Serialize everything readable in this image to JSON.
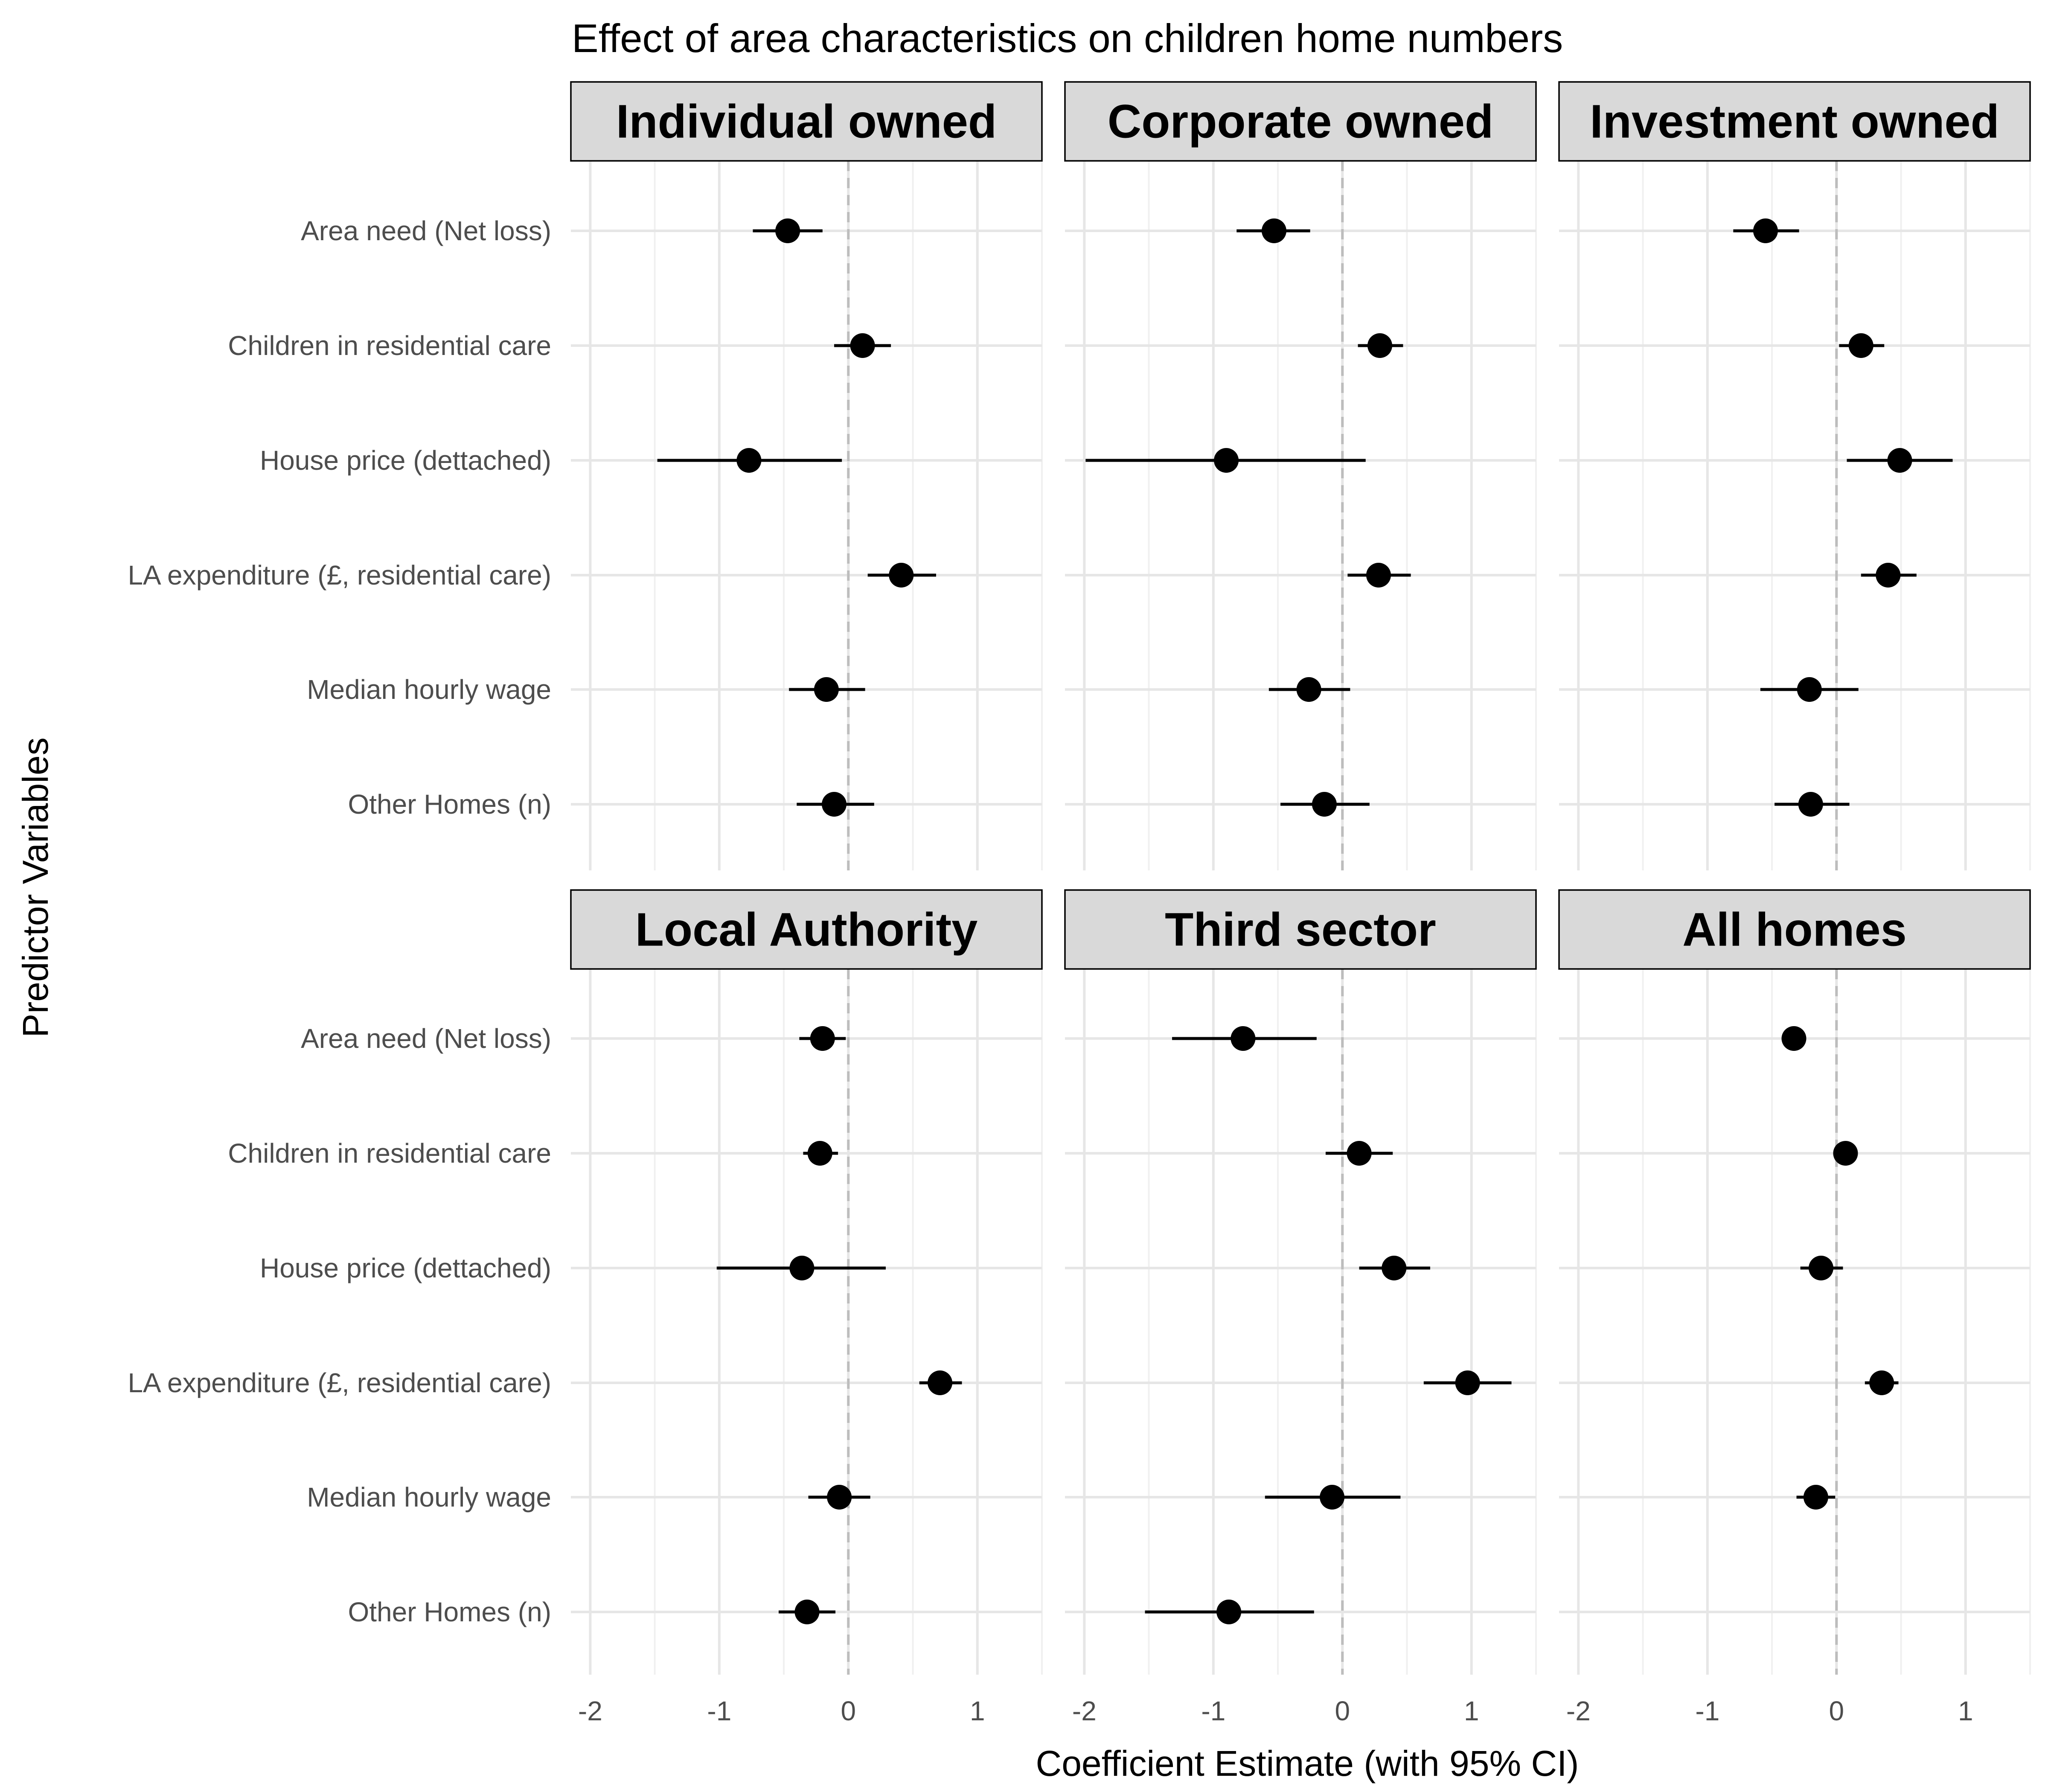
{
  "chart_data": {
    "type": "forest-plot",
    "title": "Effect of area characteristics on children home numbers",
    "xlabel": "Coefficient Estimate (with 95% CI)",
    "ylabel": "Predictor Variables",
    "xlim": [
      -2.15,
      1.5
    ],
    "x_ticks": [
      -2,
      -1,
      0,
      1
    ],
    "reference_line": 0,
    "grid": true,
    "predictors": [
      "Area need (Net loss)",
      "Children in residential care",
      "House price (dettached)",
      "LA expenditure (£, residential care)",
      "Median hourly wage",
      "Other Homes (n)"
    ],
    "facets": [
      {
        "name": "Individual owned",
        "estimates": [
          {
            "estimate": -0.47,
            "lower": -0.74,
            "upper": -0.2
          },
          {
            "estimate": 0.11,
            "lower": -0.11,
            "upper": 0.33
          },
          {
            "estimate": -0.77,
            "lower": -1.48,
            "upper": -0.05
          },
          {
            "estimate": 0.41,
            "lower": 0.15,
            "upper": 0.68
          },
          {
            "estimate": -0.17,
            "lower": -0.46,
            "upper": 0.13
          },
          {
            "estimate": -0.11,
            "lower": -0.4,
            "upper": 0.2
          }
        ]
      },
      {
        "name": "Corporate owned",
        "estimates": [
          {
            "estimate": -0.53,
            "lower": -0.82,
            "upper": -0.25
          },
          {
            "estimate": 0.29,
            "lower": 0.12,
            "upper": 0.47
          },
          {
            "estimate": -0.9,
            "lower": -1.99,
            "upper": 0.18
          },
          {
            "estimate": 0.28,
            "lower": 0.04,
            "upper": 0.53
          },
          {
            "estimate": -0.26,
            "lower": -0.57,
            "upper": 0.06
          },
          {
            "estimate": -0.14,
            "lower": -0.48,
            "upper": 0.21
          }
        ]
      },
      {
        "name": "Investment owned",
        "estimates": [
          {
            "estimate": -0.55,
            "lower": -0.8,
            "upper": -0.29
          },
          {
            "estimate": 0.19,
            "lower": 0.02,
            "upper": 0.37
          },
          {
            "estimate": 0.49,
            "lower": 0.08,
            "upper": 0.9
          },
          {
            "estimate": 0.4,
            "lower": 0.19,
            "upper": 0.62
          },
          {
            "estimate": -0.21,
            "lower": -0.59,
            "upper": 0.17
          },
          {
            "estimate": -0.2,
            "lower": -0.48,
            "upper": 0.1
          }
        ]
      },
      {
        "name": "Local Authority",
        "estimates": [
          {
            "estimate": -0.2,
            "lower": -0.38,
            "upper": -0.02
          },
          {
            "estimate": -0.22,
            "lower": -0.35,
            "upper": -0.08
          },
          {
            "estimate": -0.36,
            "lower": -1.02,
            "upper": 0.29
          },
          {
            "estimate": 0.71,
            "lower": 0.55,
            "upper": 0.88
          },
          {
            "estimate": -0.07,
            "lower": -0.31,
            "upper": 0.17
          },
          {
            "estimate": -0.32,
            "lower": -0.54,
            "upper": -0.1
          }
        ]
      },
      {
        "name": "Third sector",
        "estimates": [
          {
            "estimate": -0.77,
            "lower": -1.32,
            "upper": -0.2
          },
          {
            "estimate": 0.13,
            "lower": -0.13,
            "upper": 0.39
          },
          {
            "estimate": 0.4,
            "lower": 0.13,
            "upper": 0.68
          },
          {
            "estimate": 0.97,
            "lower": 0.63,
            "upper": 1.31
          },
          {
            "estimate": -0.08,
            "lower": -0.6,
            "upper": 0.45
          },
          {
            "estimate": -0.88,
            "lower": -1.53,
            "upper": -0.22
          }
        ]
      },
      {
        "name": "All homes",
        "estimates": [
          {
            "estimate": -0.33,
            "lower": -0.38,
            "upper": -0.28
          },
          {
            "estimate": 0.07,
            "lower": 0.03,
            "upper": 0.11
          },
          {
            "estimate": -0.12,
            "lower": -0.28,
            "upper": 0.05
          },
          {
            "estimate": 0.35,
            "lower": 0.22,
            "upper": 0.48
          },
          {
            "estimate": -0.16,
            "lower": -0.31,
            "upper": -0.01
          },
          {
            "estimate": null,
            "lower": null,
            "upper": null
          }
        ]
      }
    ]
  }
}
